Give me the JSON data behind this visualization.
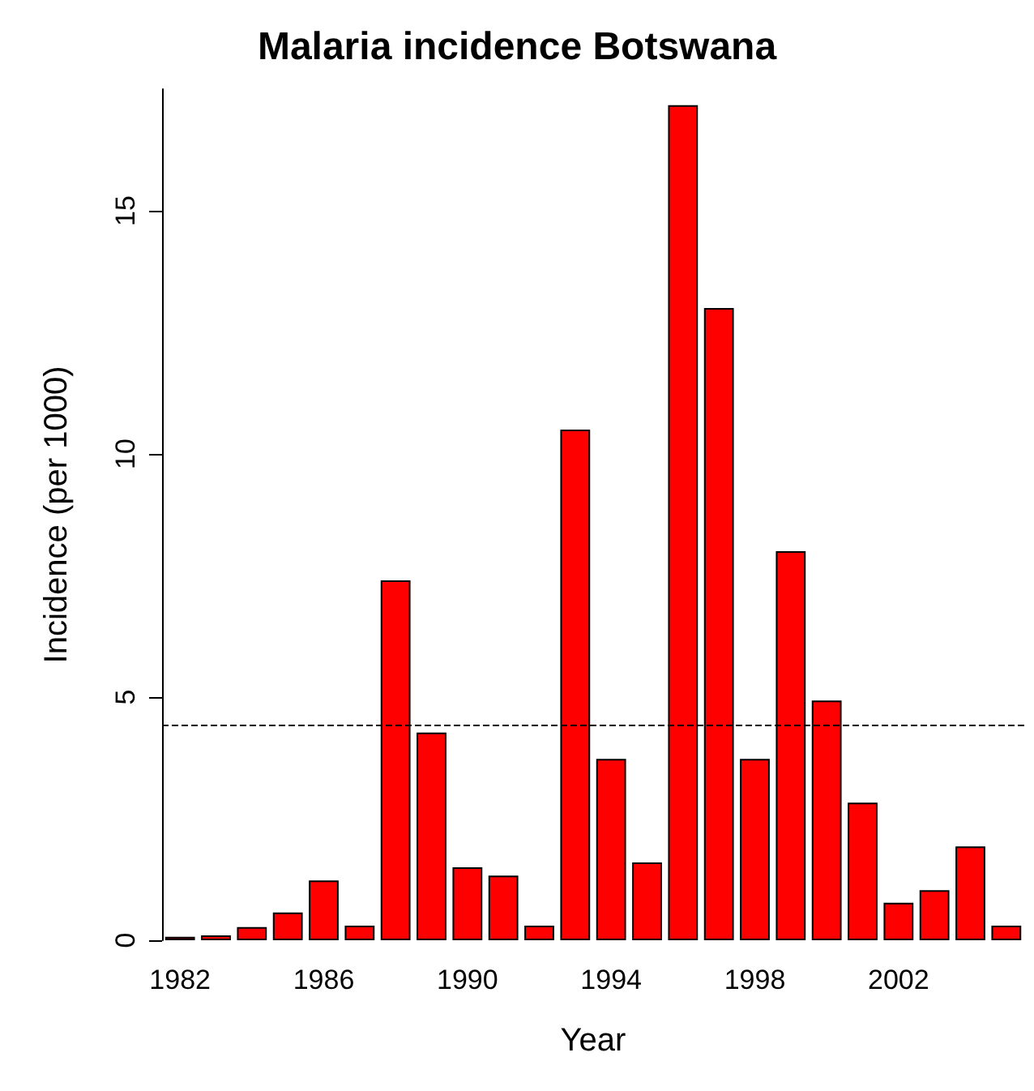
{
  "chart_data": {
    "type": "bar",
    "title": "Malaria incidence Botswana",
    "xlabel": "Year",
    "ylabel": "Incidence (per 1000)",
    "categories": [
      "1982",
      null,
      null,
      null,
      "1986",
      null,
      null,
      null,
      "1990",
      null,
      null,
      null,
      "1994",
      null,
      null,
      null,
      "1998",
      null,
      null,
      null,
      "2002",
      null,
      null,
      null
    ],
    "values": [
      0.07,
      0.1,
      0.27,
      0.57,
      1.23,
      0.3,
      7.4,
      4.27,
      1.5,
      1.33,
      0.3,
      10.5,
      3.73,
      1.6,
      17.17,
      13.0,
      3.73,
      8.0,
      4.93,
      2.83,
      0.77,
      1.03,
      1.93,
      0.3
    ],
    "color": "#ff0000",
    "ylim": [
      0,
      17.5
    ],
    "yticks": [
      0,
      5,
      10,
      15
    ],
    "ref_lines": [
      {
        "axis": "y",
        "value": 4.43,
        "color": "#000000",
        "line_style": "dashed"
      }
    ],
    "grid": false
  }
}
